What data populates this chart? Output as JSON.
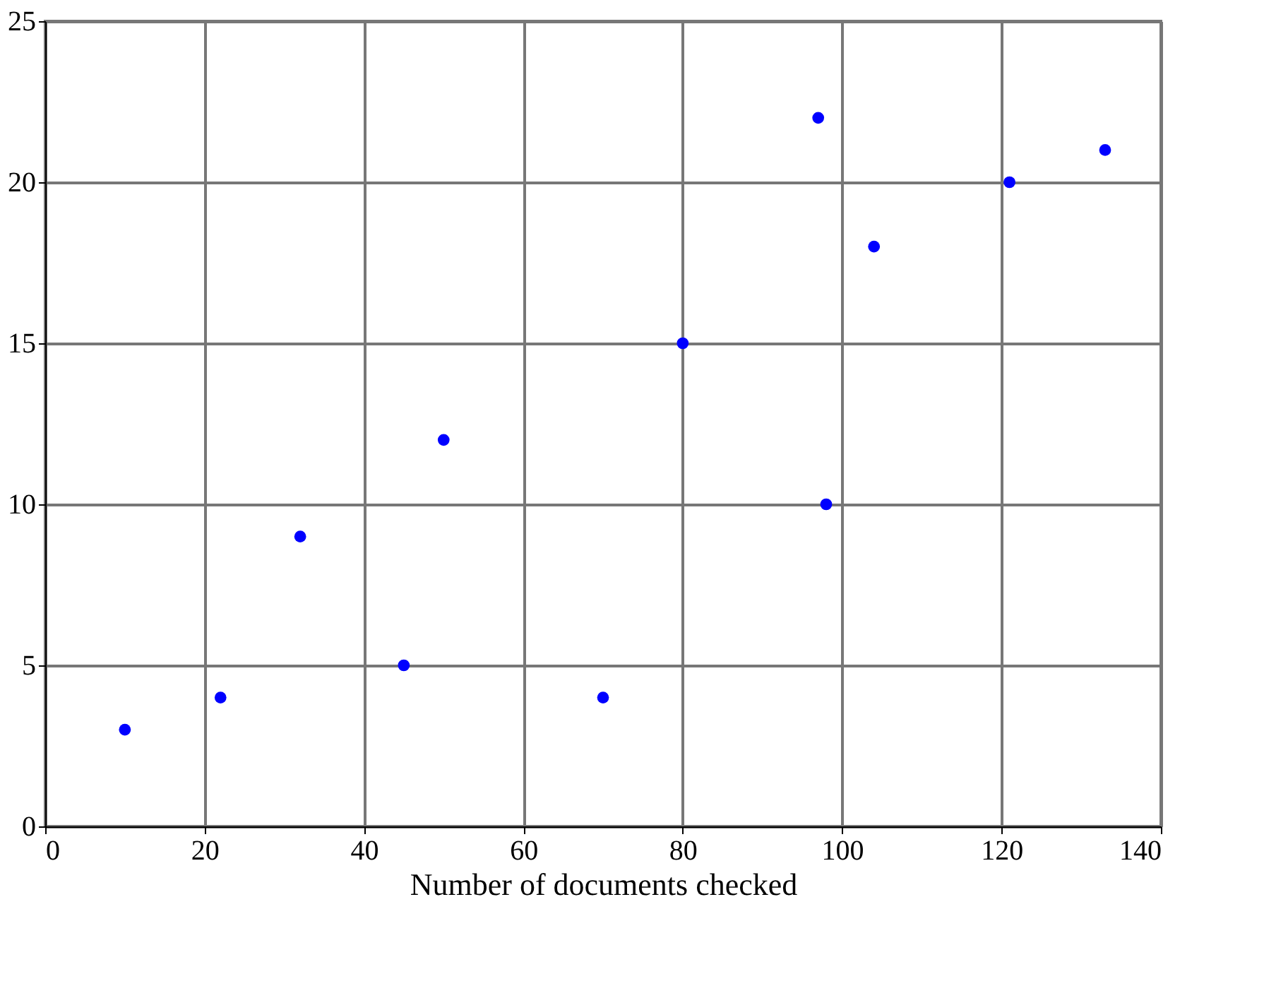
{
  "chart_data": {
    "type": "scatter",
    "xlabel": "Number of documents checked",
    "x": [
      10,
      22,
      32,
      45,
      50,
      70,
      80,
      97,
      98,
      104,
      121,
      133
    ],
    "series": [
      {
        "color": "#0000ff",
        "values": [
          3,
          4,
          9,
          5,
          12,
          4,
          15,
          22,
          10,
          18,
          20,
          21
        ]
      }
    ],
    "xlim": [
      0,
      140
    ],
    "xticks": [
      0,
      20,
      40,
      60,
      80,
      100,
      120,
      140
    ],
    "ylim": [
      0,
      25
    ],
    "yticks": [
      0,
      5,
      10,
      15,
      20,
      25
    ],
    "grid": true,
    "marker": "circle",
    "legend": false
  }
}
